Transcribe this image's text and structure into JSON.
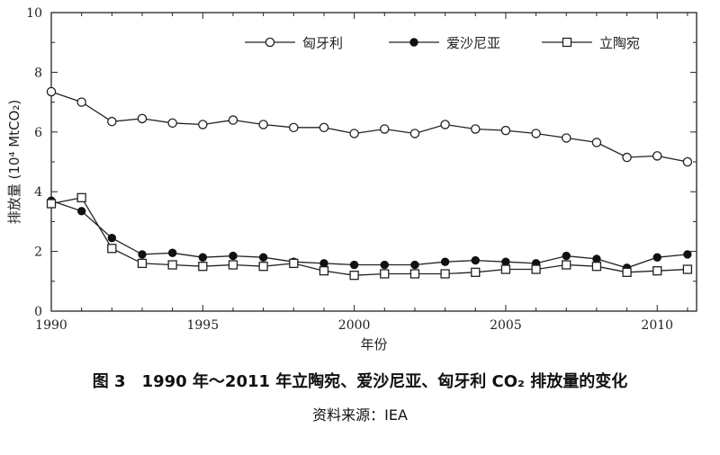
{
  "chart_data": {
    "type": "line",
    "title": "",
    "xlabel": "年份",
    "ylabel": "排放量 (10⁴ MtCO₂)",
    "xlim": [
      1990,
      2011.3
    ],
    "ylim": [
      0,
      10
    ],
    "xticks": [
      1990,
      1995,
      2000,
      2005,
      2010
    ],
    "yticks": [
      0,
      2,
      4,
      6,
      8,
      10
    ],
    "grid": false,
    "legend_position": "top",
    "x": [
      1990,
      1991,
      1992,
      1993,
      1994,
      1995,
      1996,
      1997,
      1998,
      1999,
      2000,
      2001,
      2002,
      2003,
      2004,
      2005,
      2006,
      2007,
      2008,
      2009,
      2010,
      2011
    ],
    "series": [
      {
        "name": "匈牙利",
        "marker": "open-circle",
        "values": [
          7.35,
          7.0,
          6.35,
          6.45,
          6.3,
          6.25,
          6.4,
          6.25,
          6.15,
          6.15,
          5.95,
          6.1,
          5.95,
          6.25,
          6.1,
          6.05,
          5.95,
          5.8,
          5.65,
          5.15,
          5.2,
          5.0
        ]
      },
      {
        "name": "爱沙尼亚",
        "marker": "filled-circle",
        "values": [
          3.7,
          3.35,
          2.45,
          1.9,
          1.95,
          1.8,
          1.85,
          1.8,
          1.65,
          1.6,
          1.55,
          1.55,
          1.55,
          1.65,
          1.7,
          1.65,
          1.6,
          1.85,
          1.75,
          1.45,
          1.8,
          1.9
        ]
      },
      {
        "name": "立陶宛",
        "marker": "open-square",
        "values": [
          3.6,
          3.8,
          2.1,
          1.6,
          1.55,
          1.5,
          1.55,
          1.5,
          1.6,
          1.35,
          1.2,
          1.25,
          1.25,
          1.25,
          1.3,
          1.4,
          1.4,
          1.55,
          1.5,
          1.3,
          1.35,
          1.4
        ]
      }
    ]
  },
  "caption": "图 3　1990 年～2011 年立陶宛、爱沙尼亚、匈牙利 CO₂ 排放量的变化",
  "source": "资料来源：IEA"
}
